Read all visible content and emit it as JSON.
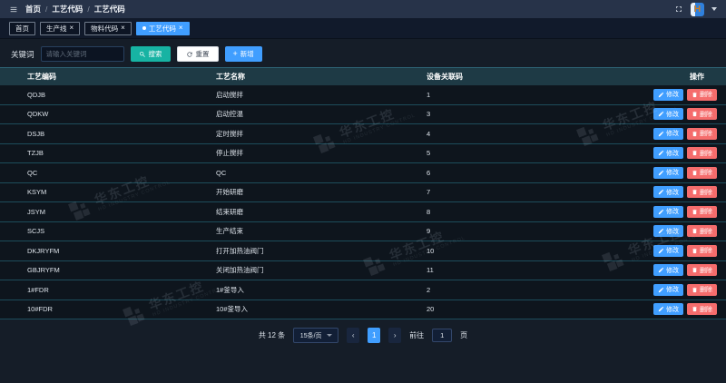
{
  "topbar": {
    "breadcrumb": [
      "首页",
      "工艺代码",
      "工艺代码"
    ],
    "avatar_text": "H"
  },
  "tabs": [
    {
      "label": "首页",
      "closable": false,
      "active": false
    },
    {
      "label": "生产线",
      "closable": true,
      "active": false
    },
    {
      "label": "物料代码",
      "closable": true,
      "active": false
    },
    {
      "label": "工艺代码",
      "closable": true,
      "active": true
    }
  ],
  "search": {
    "label": "关键词",
    "placeholder": "请输入关键词",
    "value": "",
    "search_label": "搜索",
    "reset_label": "重置",
    "add_label": "新增"
  },
  "table": {
    "columns": [
      "工艺编码",
      "工艺名称",
      "设备关联码",
      "操作"
    ],
    "edit_label": "修改",
    "delete_label": "删除",
    "rows": [
      {
        "code": "QDJB",
        "name": "启动搅拌",
        "device_code": "1"
      },
      {
        "code": "QDKW",
        "name": "启动控温",
        "device_code": "3"
      },
      {
        "code": "DSJB",
        "name": "定时搅拌",
        "device_code": "4"
      },
      {
        "code": "TZJB",
        "name": "停止搅拌",
        "device_code": "5"
      },
      {
        "code": "QC",
        "name": "QC",
        "device_code": "6"
      },
      {
        "code": "KSYM",
        "name": "开始研磨",
        "device_code": "7"
      },
      {
        "code": "JSYM",
        "name": "结束研磨",
        "device_code": "8"
      },
      {
        "code": "SCJS",
        "name": "生产结束",
        "device_code": "9"
      },
      {
        "code": "DKJRYFM",
        "name": "打开加热油阀门",
        "device_code": "10"
      },
      {
        "code": "GBJRYFM",
        "name": "关闭加热油阀门",
        "device_code": "11"
      },
      {
        "code": "1#FDR",
        "name": "1#釜导入",
        "device_code": "2"
      },
      {
        "code": "10#FDR",
        "name": "10#釜导入",
        "device_code": "20"
      }
    ]
  },
  "pagination": {
    "total_text": "共 12 条",
    "page_size": "15条/页",
    "current_page": "1",
    "goto_prefix": "前往",
    "goto_value": "1",
    "goto_suffix": "页"
  },
  "watermark": {
    "title": "华东工控",
    "subtitle": "HD INDUSTRY CONTROL"
  },
  "colors": {
    "accent": "#409eff",
    "search_button": "#17b3a3",
    "danger": "#f56c6c",
    "table_header": "#1e3a45",
    "topbar": "#273349",
    "page_background": "#151d28"
  }
}
